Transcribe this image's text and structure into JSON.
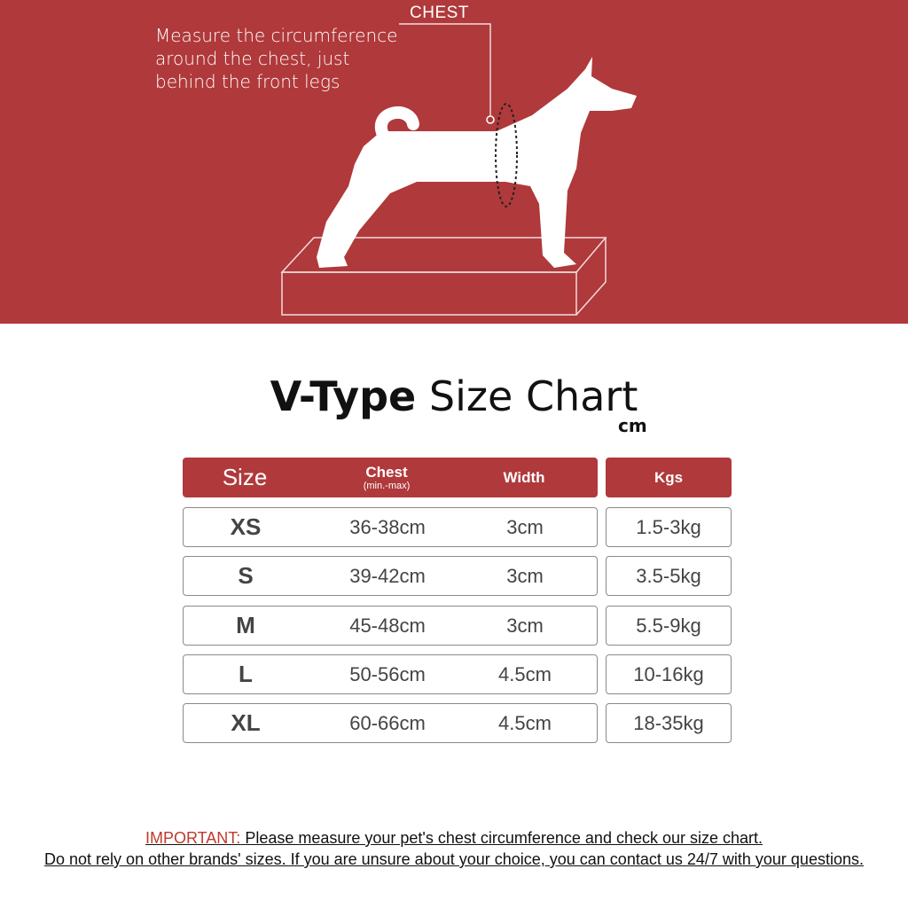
{
  "hero": {
    "instruction_lines": [
      "Measure the circumference",
      "around the chest, just",
      "behind the front legs"
    ],
    "chest_label": "CHEST",
    "background_color": "#b0393b"
  },
  "title": {
    "bold": "V-Type",
    "regular": "Size Chart",
    "unit": "cm"
  },
  "table": {
    "headers": {
      "size": "Size",
      "chest": "Chest",
      "chest_sub": "(min.-max)",
      "width": "Width",
      "kgs": "Kgs"
    },
    "rows": [
      {
        "size": "XS",
        "chest": "36-38cm",
        "width": "3cm",
        "kgs": "1.5-3kg"
      },
      {
        "size": "S",
        "chest": "39-42cm",
        "width": "3cm",
        "kgs": "3.5-5kg"
      },
      {
        "size": "M",
        "chest": "45-48cm",
        "width": "3cm",
        "kgs": "5.5-9kg"
      },
      {
        "size": "L",
        "chest": "50-56cm",
        "width": "4.5cm",
        "kgs": "10-16kg"
      },
      {
        "size": "XL",
        "chest": "60-66cm",
        "width": "4.5cm",
        "kgs": "18-35kg"
      }
    ]
  },
  "footer": {
    "important_label": "IMPORTANT:",
    "line1": "Please measure your pet's chest circumference and check our size chart.",
    "line2": "Do not rely on other brands' sizes. If you are unsure about your choice, you can contact us 24/7 with your questions."
  }
}
